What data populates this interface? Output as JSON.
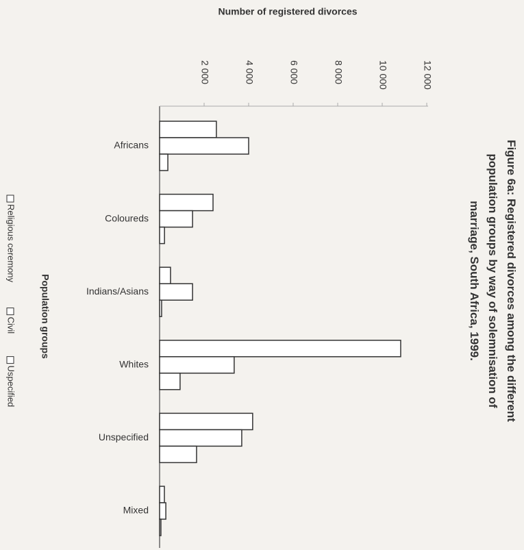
{
  "chart_data": {
    "type": "bar",
    "orientation": "horizontal",
    "title": "Figure 6a: Registered divorces among the different population groups by way of solemnisation of marriage, South Africa, 1999.",
    "x_label": "Number of registered divorces",
    "y_label": "Population groups",
    "categories": [
      "Africans",
      "Coloureds",
      "Indians/Asians",
      "Whites",
      "Unspecified",
      "Mixed"
    ],
    "series": [
      {
        "name": "Religious ceremony",
        "color": "#ffffff",
        "values": [
          2550,
          2400,
          490,
          10830,
          4180,
          215
        ]
      },
      {
        "name": "Civil",
        "color": "#ffffff",
        "values": [
          4000,
          1480,
          1480,
          3350,
          3690,
          280
        ]
      },
      {
        "name": "Uspecified",
        "color": "#ffffff",
        "values": [
          370,
          220,
          90,
          920,
          1660,
          60
        ]
      }
    ],
    "xlim": [
      0,
      12000
    ],
    "xticks": [
      {
        "value": 2000,
        "label": "2 000"
      },
      {
        "value": 4000,
        "label": "4 000"
      },
      {
        "value": 6000,
        "label": "6 000"
      },
      {
        "value": 8000,
        "label": "8 000"
      },
      {
        "value": 10000,
        "label": "10 000"
      },
      {
        "value": 12000,
        "label": "12 000"
      }
    ],
    "grid": false
  }
}
